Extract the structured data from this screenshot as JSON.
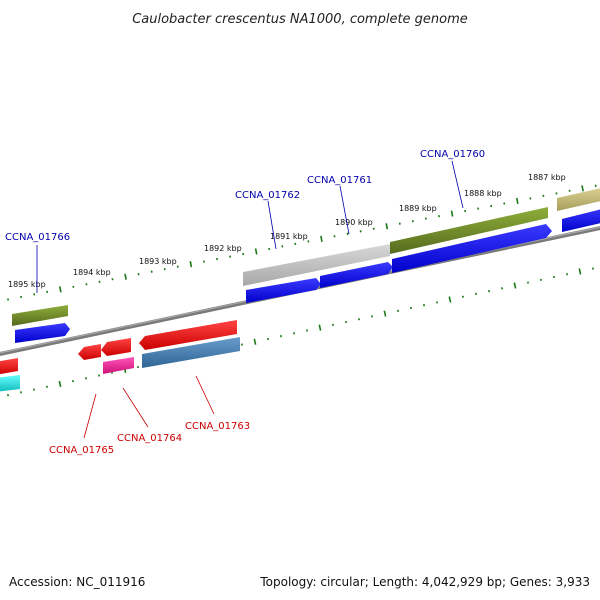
{
  "title": "Caulobacter crescentus NA1000, complete genome",
  "footer": {
    "accession": "Accession: NC_011916",
    "summary": "Topology: circular; Length: 4,042,929 bp; Genes: 3,933"
  },
  "ticks": {
    "labels": [
      "1895 kbp",
      "1894 kbp",
      "1893 kbp",
      "1892 kbp",
      "1891 kbp",
      "1890 kbp",
      "1889 kbp",
      "1888 kbp",
      "1887 kbp"
    ],
    "color": "#1a7a1a"
  },
  "genes_top": [
    {
      "name": "CCNA_01766",
      "color": "#0000aa"
    },
    {
      "name": "CCNA_01762",
      "color": "#0000aa"
    },
    {
      "name": "CCNA_01761",
      "color": "#0000aa"
    },
    {
      "name": "CCNA_01760",
      "color": "#0000aa"
    }
  ],
  "genes_bottom": [
    {
      "name": "CCNA_01765",
      "color": "#cc0000"
    },
    {
      "name": "CCNA_01764",
      "color": "#cc0000"
    },
    {
      "name": "CCNA_01763",
      "color": "#cc0000"
    }
  ],
  "colors": {
    "backbone": "#808080",
    "blue_feature": "#1010e8",
    "green_feature": "#6b8e23",
    "gray_feature": "#c0c0c0",
    "khaki_feature": "#c8be78",
    "red_feature": "#ee1111",
    "magenta_feature": "#ee2299",
    "steel_feature": "#4682b4",
    "cyan_feature": "#22eeee"
  }
}
